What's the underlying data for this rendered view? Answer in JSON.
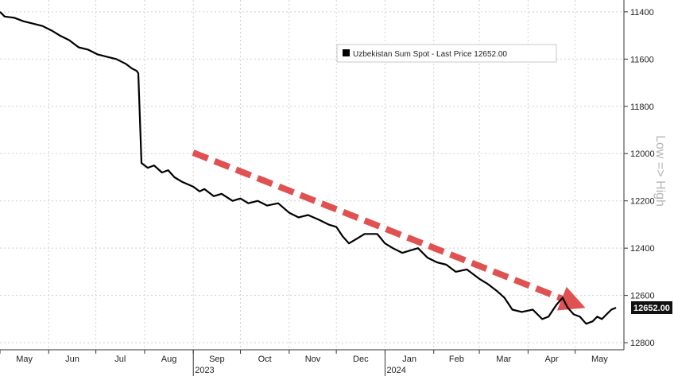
{
  "chart_data": {
    "type": "line",
    "title": "",
    "ylabel_right": "Low => High",
    "y_inverted": true,
    "ylim": [
      11350,
      12830
    ],
    "yticks": [
      11400,
      11600,
      11800,
      12000,
      12200,
      12400,
      12600,
      12800
    ],
    "grid": true,
    "legend": {
      "placement": "top-right",
      "label": "Uzbekistan Sum Spot - Last Price 12652.00"
    },
    "last_price_label": "12652.00",
    "x_months": [
      {
        "label": "May",
        "date": "2023-05-01"
      },
      {
        "label": "Jun",
        "date": "2023-06-01"
      },
      {
        "label": "Jul",
        "date": "2023-07-01"
      },
      {
        "label": "Aug",
        "date": "2023-08-01"
      },
      {
        "label": "Sep",
        "date": "2023-09-01"
      },
      {
        "label": "Oct",
        "date": "2023-10-01"
      },
      {
        "label": "Nov",
        "date": "2023-11-01"
      },
      {
        "label": "Dec",
        "date": "2023-12-01"
      },
      {
        "label": "Jan",
        "date": "2024-01-01"
      },
      {
        "label": "Feb",
        "date": "2024-02-01"
      },
      {
        "label": "Mar",
        "date": "2024-03-01"
      },
      {
        "label": "Apr",
        "date": "2024-04-01"
      },
      {
        "label": "May",
        "date": "2024-05-01"
      }
    ],
    "x_years": [
      {
        "label": "2023",
        "date": "2023-09-01"
      },
      {
        "label": "2024",
        "date": "2024-01-01"
      }
    ],
    "series": [
      {
        "name": "Uzbekistan Sum Spot",
        "color": "#000000",
        "points": [
          [
            "2023-05-01",
            11400
          ],
          [
            "2023-05-04",
            11420
          ],
          [
            "2023-05-10",
            11425
          ],
          [
            "2023-05-16",
            11440
          ],
          [
            "2023-05-22",
            11450
          ],
          [
            "2023-05-28",
            11460
          ],
          [
            "2023-06-03",
            11480
          ],
          [
            "2023-06-08",
            11500
          ],
          [
            "2023-06-14",
            11520
          ],
          [
            "2023-06-20",
            11550
          ],
          [
            "2023-06-26",
            11560
          ],
          [
            "2023-07-02",
            11580
          ],
          [
            "2023-07-08",
            11590
          ],
          [
            "2023-07-14",
            11600
          ],
          [
            "2023-07-20",
            11620
          ],
          [
            "2023-07-24",
            11640
          ],
          [
            "2023-07-27",
            11650
          ],
          [
            "2023-07-28",
            11660
          ],
          [
            "2023-07-30",
            12040
          ],
          [
            "2023-08-03",
            12060
          ],
          [
            "2023-08-07",
            12050
          ],
          [
            "2023-08-12",
            12080
          ],
          [
            "2023-08-16",
            12070
          ],
          [
            "2023-08-20",
            12100
          ],
          [
            "2023-08-25",
            12120
          ],
          [
            "2023-09-01",
            12140
          ],
          [
            "2023-09-05",
            12160
          ],
          [
            "2023-09-08",
            12150
          ],
          [
            "2023-09-14",
            12180
          ],
          [
            "2023-09-19",
            12170
          ],
          [
            "2023-09-26",
            12200
          ],
          [
            "2023-10-01",
            12190
          ],
          [
            "2023-10-06",
            12210
          ],
          [
            "2023-10-12",
            12200
          ],
          [
            "2023-10-18",
            12220
          ],
          [
            "2023-10-25",
            12210
          ],
          [
            "2023-11-01",
            12250
          ],
          [
            "2023-11-07",
            12270
          ],
          [
            "2023-11-13",
            12260
          ],
          [
            "2023-11-20",
            12280
          ],
          [
            "2023-11-26",
            12300
          ],
          [
            "2023-12-01",
            12310
          ],
          [
            "2023-12-05",
            12350
          ],
          [
            "2023-12-09",
            12380
          ],
          [
            "2023-12-14",
            12360
          ],
          [
            "2023-12-19",
            12340
          ],
          [
            "2023-12-27",
            12340
          ],
          [
            "2024-01-01",
            12380
          ],
          [
            "2024-01-06",
            12400
          ],
          [
            "2024-01-12",
            12420
          ],
          [
            "2024-01-17",
            12410
          ],
          [
            "2024-01-22",
            12400
          ],
          [
            "2024-01-28",
            12440
          ],
          [
            "2024-02-03",
            12460
          ],
          [
            "2024-02-09",
            12470
          ],
          [
            "2024-02-15",
            12500
          ],
          [
            "2024-02-22",
            12490
          ],
          [
            "2024-03-01",
            12530
          ],
          [
            "2024-03-06",
            12550
          ],
          [
            "2024-03-12",
            12580
          ],
          [
            "2024-03-17",
            12610
          ],
          [
            "2024-03-22",
            12660
          ],
          [
            "2024-03-28",
            12670
          ],
          [
            "2024-04-04",
            12660
          ],
          [
            "2024-04-10",
            12700
          ],
          [
            "2024-04-14",
            12690
          ],
          [
            "2024-04-19",
            12640
          ],
          [
            "2024-04-23",
            12610
          ],
          [
            "2024-04-26",
            12650
          ],
          [
            "2024-04-30",
            12680
          ],
          [
            "2024-05-04",
            12690
          ],
          [
            "2024-05-08",
            12720
          ],
          [
            "2024-05-12",
            12710
          ],
          [
            "2024-05-15",
            12690
          ],
          [
            "2024-05-18",
            12700
          ],
          [
            "2024-05-21",
            12680
          ],
          [
            "2024-05-24",
            12660
          ],
          [
            "2024-05-27",
            12652
          ]
        ]
      }
    ]
  }
}
